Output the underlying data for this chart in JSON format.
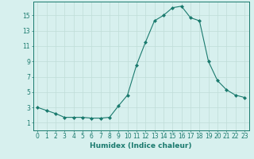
{
  "x": [
    0,
    1,
    2,
    3,
    4,
    5,
    6,
    7,
    8,
    9,
    10,
    11,
    12,
    13,
    14,
    15,
    16,
    17,
    18,
    19,
    20,
    21,
    22,
    23
  ],
  "y": [
    3.0,
    2.6,
    2.2,
    1.7,
    1.7,
    1.7,
    1.6,
    1.6,
    1.7,
    3.2,
    4.6,
    8.5,
    11.5,
    14.3,
    15.0,
    16.0,
    16.2,
    14.7,
    14.3,
    9.0,
    6.5,
    5.3,
    4.6,
    4.3
  ],
  "xlabel": "Humidex (Indice chaleur)",
  "bg_color": "#d7f0ee",
  "line_color": "#1a7a6e",
  "marker": "D",
  "marker_size": 2.0,
  "ylim": [
    0,
    16.8
  ],
  "xlim": [
    -0.5,
    23.5
  ],
  "yticks": [
    1,
    3,
    5,
    7,
    9,
    11,
    13,
    15
  ],
  "xticks": [
    0,
    1,
    2,
    3,
    4,
    5,
    6,
    7,
    8,
    9,
    10,
    11,
    12,
    13,
    14,
    15,
    16,
    17,
    18,
    19,
    20,
    21,
    22,
    23
  ],
  "grid_color": "#c0ddd8",
  "tick_fontsize": 5.5,
  "xlabel_fontsize": 6.5,
  "linewidth": 0.8
}
